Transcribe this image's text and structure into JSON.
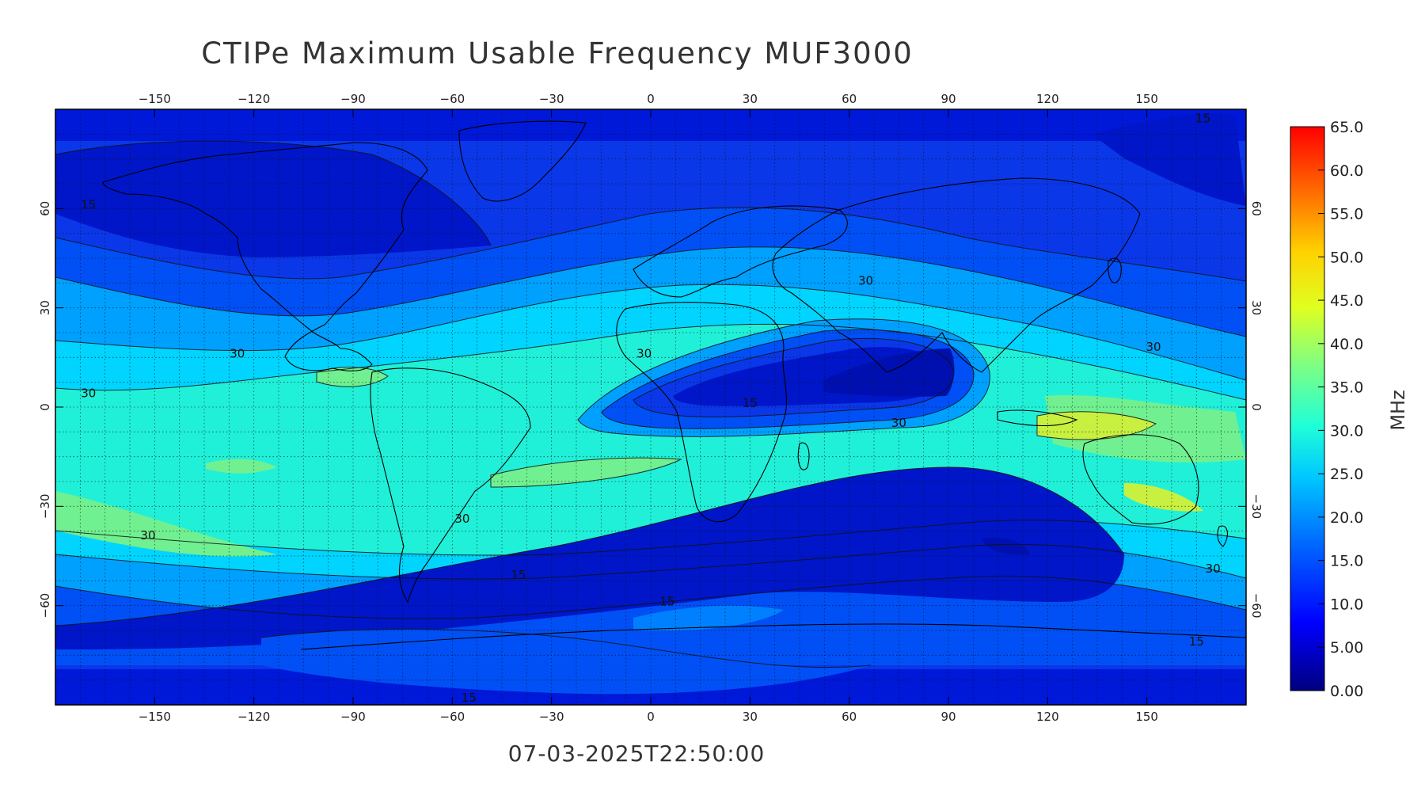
{
  "title": "CTIPe Maximum Usable Frequency MUF3000",
  "timestamp": "07-03-2025T22:50:00",
  "unit": "MHz",
  "map": {
    "lon_range": [
      -180,
      180
    ],
    "lat_range": [
      -90,
      90
    ],
    "lon_ticks": [
      "-150",
      "-120",
      "-90",
      "-60",
      "-30",
      "0",
      "30",
      "60",
      "90",
      "120",
      "150"
    ],
    "lat_ticks": [
      "-60",
      "-30",
      "0",
      "30",
      "60"
    ],
    "grid": "dotted 7.5 deg",
    "projection": "cylindrical equidistant"
  },
  "colorbar": {
    "labels": [
      "65.0",
      "60.0",
      "55.0",
      "50.0",
      "45.0",
      "40.0",
      "35.0",
      "30.0",
      "25.0",
      "20.0",
      "15.0",
      "10.0",
      "5.00",
      "0.00"
    ],
    "min": 0,
    "max": 65,
    "colors": [
      "#000080",
      "#0000ff",
      "#0080ff",
      "#00ffff",
      "#80ff80",
      "#ffff00",
      "#ff8000",
      "#ff0000"
    ]
  },
  "contour_labels": [
    "15",
    "15",
    "15",
    "15",
    "15",
    "15",
    "15",
    "30",
    "30",
    "30",
    "30",
    "30",
    "30",
    "30",
    "30",
    "30"
  ]
}
